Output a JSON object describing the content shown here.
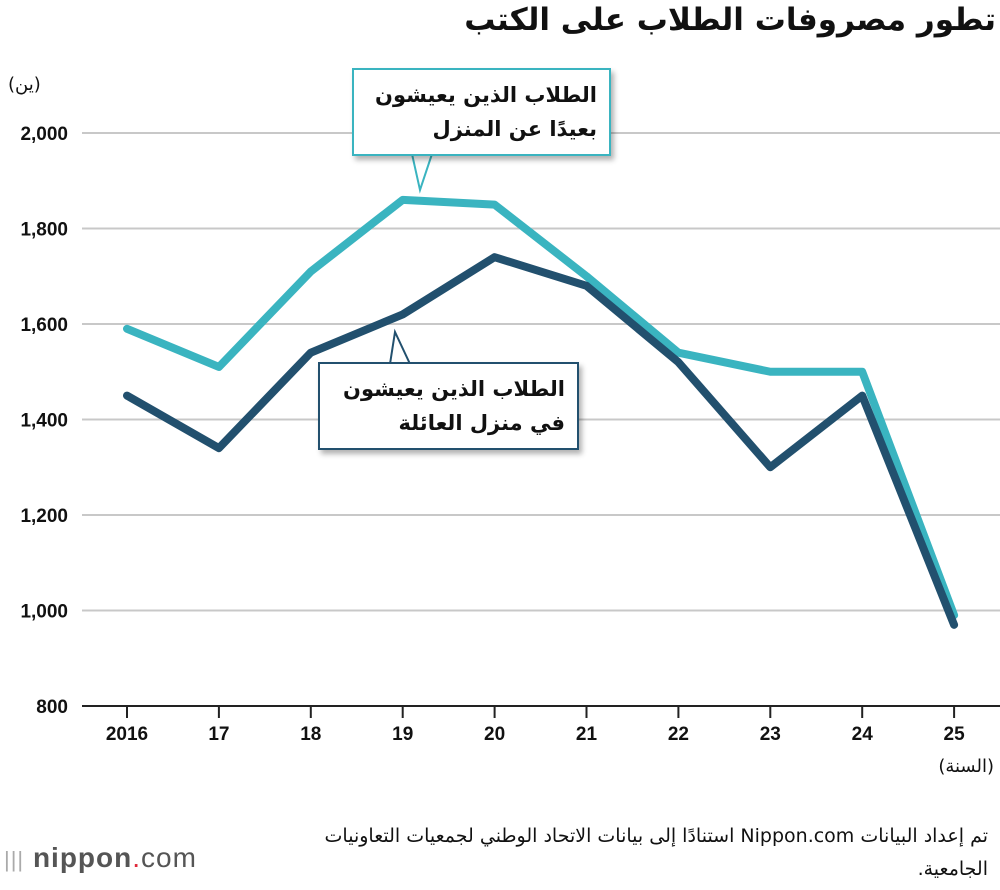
{
  "title": "تطور مصروفات الطلاب على الكتب",
  "source": "تم إعداد البيانات Nippon.com استنادًا إلى بيانات الاتحاد الوطني لجمعيات التعاونيات الجامعية.",
  "logo": {
    "name": "nippon",
    "dot": ".",
    "suffix": "com"
  },
  "chart_data": {
    "type": "line",
    "title": "تطور مصروفات الطلاب على الكتب",
    "ylabel": "(ين)",
    "xlabel": "(السنة)",
    "categories": [
      "2016",
      "17",
      "18",
      "19",
      "20",
      "21",
      "22",
      "23",
      "24",
      "25"
    ],
    "yticks": [
      "800",
      "1,000",
      "1,200",
      "1,400",
      "1,600",
      "1,800",
      "2,000"
    ],
    "ylim": [
      800,
      2000
    ],
    "grid": true,
    "series": [
      {
        "name": "الطلاب الذين يعيشون بعيدًا عن المنزل",
        "line1": "الطلاب الذين يعيشون",
        "line2": "بعيدًا عن المنزل",
        "color": "#3ab4c0",
        "values": [
          1590,
          1510,
          1710,
          1860,
          1850,
          1700,
          1540,
          1500,
          1500,
          990
        ]
      },
      {
        "name": "الطلاب الذين يعيشون في منزل العائلة",
        "line1": "الطلاب الذين يعيشون",
        "line2": "في منزل العائلة",
        "color": "#22506e",
        "values": [
          1450,
          1340,
          1540,
          1620,
          1740,
          1680,
          1520,
          1300,
          1450,
          970
        ]
      }
    ]
  }
}
